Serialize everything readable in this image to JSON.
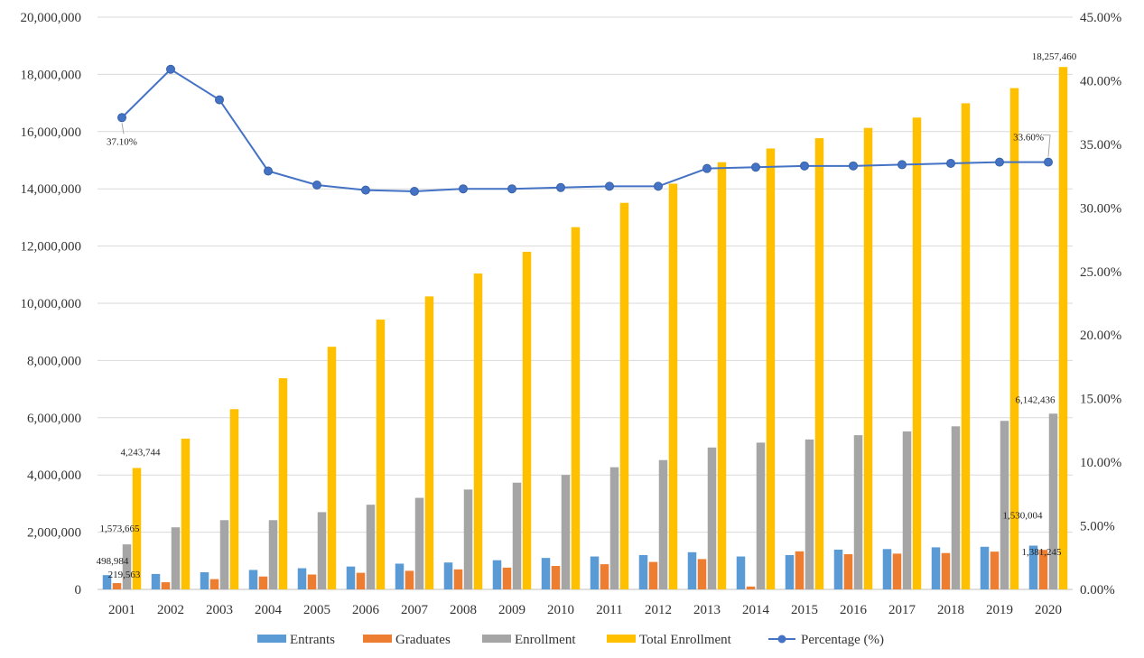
{
  "chart_data": {
    "type": "bar",
    "categories": [
      "2001",
      "2002",
      "2003",
      "2004",
      "2005",
      "2006",
      "2007",
      "2008",
      "2009",
      "2010",
      "2011",
      "2012",
      "2013",
      "2014",
      "2015",
      "2016",
      "2017",
      "2018",
      "2019",
      "2020"
    ],
    "series": [
      {
        "name": "Entrants",
        "color": "#5b9bd5",
        "axis": "left",
        "values": [
          498984,
          540000,
          600000,
          680000,
          740000,
          800000,
          900000,
          940000,
          1020000,
          1100000,
          1150000,
          1200000,
          1300000,
          1150000,
          1200000,
          1390000,
          1410000,
          1470000,
          1490000,
          1530004
        ]
      },
      {
        "name": "Graduates",
        "color": "#ed7d31",
        "axis": "left",
        "values": [
          219563,
          250000,
          360000,
          450000,
          520000,
          580000,
          650000,
          700000,
          760000,
          820000,
          880000,
          960000,
          1060000,
          100000,
          1330000,
          1230000,
          1250000,
          1270000,
          1320000,
          1381245
        ]
      },
      {
        "name": "Enrollment",
        "color": "#a5a5a5",
        "axis": "left",
        "values": [
          1573665,
          2170000,
          2420000,
          2420000,
          2700000,
          2960000,
          3200000,
          3490000,
          3730000,
          4000000,
          4270000,
          4520000,
          4960000,
          5130000,
          5240000,
          5390000,
          5520000,
          5700000,
          5890000,
          6142436
        ]
      },
      {
        "name": "Total Enrollment",
        "color": "#ffc000",
        "axis": "left",
        "values": [
          4243744,
          5270000,
          6300000,
          7380000,
          8480000,
          9430000,
          10240000,
          11040000,
          11800000,
          12660000,
          13510000,
          14180000,
          14930000,
          15410000,
          15770000,
          16130000,
          16490000,
          16990000,
          17520000,
          18257460
        ]
      },
      {
        "name": "Percentage (%)",
        "color": "#4472c4",
        "axis": "right",
        "kind": "line",
        "values": [
          37.1,
          40.9,
          38.5,
          32.9,
          31.8,
          31.4,
          31.3,
          31.5,
          31.5,
          31.6,
          31.7,
          31.7,
          33.1,
          33.2,
          33.3,
          33.3,
          33.4,
          33.5,
          33.6,
          33.6
        ]
      }
    ],
    "ylim": [
      0,
      20000000
    ],
    "yticks": [
      "0",
      "2,000,000",
      "4,000,000",
      "6,000,000",
      "8,000,000",
      "10,000,000",
      "12,000,000",
      "14,000,000",
      "16,000,000",
      "18,000,000",
      "20,000,000"
    ],
    "y2lim": [
      0,
      45
    ],
    "y2ticks": [
      "0.00%",
      "5.00%",
      "10.00%",
      "15.00%",
      "20.00%",
      "25.00%",
      "30.00%",
      "35.00%",
      "40.00%",
      "45.00%"
    ],
    "grid": true,
    "legend_position": "bottom",
    "annotations": [
      {
        "series": "Percentage (%)",
        "index": 0,
        "text": "37.10%"
      },
      {
        "series": "Percentage (%)",
        "index": 19,
        "text": "33.60%"
      },
      {
        "series": "Total Enrollment",
        "index": 0,
        "text": "4,243,744"
      },
      {
        "series": "Total Enrollment",
        "index": 19,
        "text": "18,257,460"
      },
      {
        "series": "Enrollment",
        "index": 0,
        "text": "1,573,665"
      },
      {
        "series": "Enrollment",
        "index": 19,
        "text": "6,142,436"
      },
      {
        "series": "Entrants",
        "index": 0,
        "text": "498,984"
      },
      {
        "series": "Entrants",
        "index": 19,
        "text": "1,530,004"
      },
      {
        "series": "Graduates",
        "index": 0,
        "text": "219,563"
      },
      {
        "series": "Graduates",
        "index": 19,
        "text": "1,381,245"
      }
    ]
  }
}
